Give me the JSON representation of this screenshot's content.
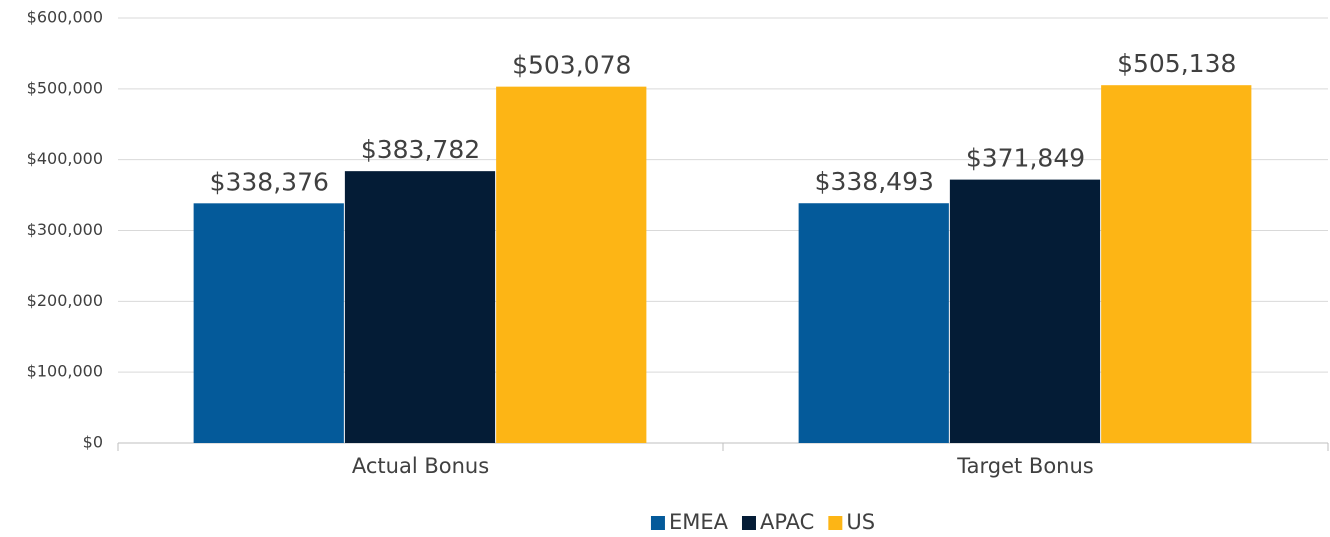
{
  "chart_data": {
    "type": "bar",
    "categories": [
      "Actual Bonus",
      "Target Bonus"
    ],
    "series": [
      {
        "name": "EMEA",
        "color": "#045a9a",
        "values": [
          338376,
          338493
        ],
        "value_labels": [
          "$338,376",
          "$338,493"
        ]
      },
      {
        "name": "APAC",
        "color": "#041c36",
        "values": [
          383782,
          371849
        ],
        "value_labels": [
          "$383,782",
          "$371,849"
        ]
      },
      {
        "name": "US",
        "color": "#fdb515",
        "values": [
          503078,
          505138
        ],
        "value_labels": [
          "$503,078",
          "$505,138"
        ]
      }
    ],
    "ylim": [
      0,
      600000
    ],
    "yticks": [
      {
        "value": 0,
        "label": "$0"
      },
      {
        "value": 100000,
        "label": "$100,000"
      },
      {
        "value": 200000,
        "label": "$200,000"
      },
      {
        "value": 300000,
        "label": "$300,000"
      },
      {
        "value": 400000,
        "label": "$400,000"
      },
      {
        "value": 500000,
        "label": "$500,000"
      },
      {
        "value": 600000,
        "label": "$600,000"
      }
    ],
    "grid": true,
    "legend": "bottom"
  }
}
